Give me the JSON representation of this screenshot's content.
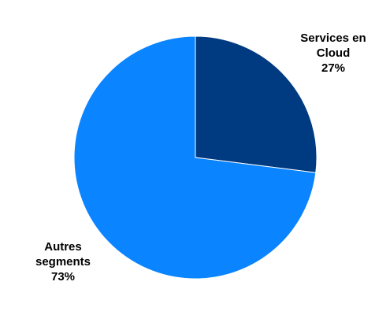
{
  "chart_data": {
    "type": "pie",
    "title": "",
    "start_angle_deg": 0,
    "direction": "clockwise",
    "slices": [
      {
        "name": "Services en Cloud",
        "value": 27,
        "label_lines": [
          "Services en",
          "Cloud"
        ],
        "percent_label": "27%",
        "color": "#003a80"
      },
      {
        "name": "Autres segments",
        "value": 73,
        "label_lines": [
          "Autres",
          "segments"
        ],
        "percent_label": "73%",
        "color": "#0a84ff"
      }
    ]
  },
  "colors": {
    "background": "#ffffff",
    "slice_border": "#ffffff"
  }
}
